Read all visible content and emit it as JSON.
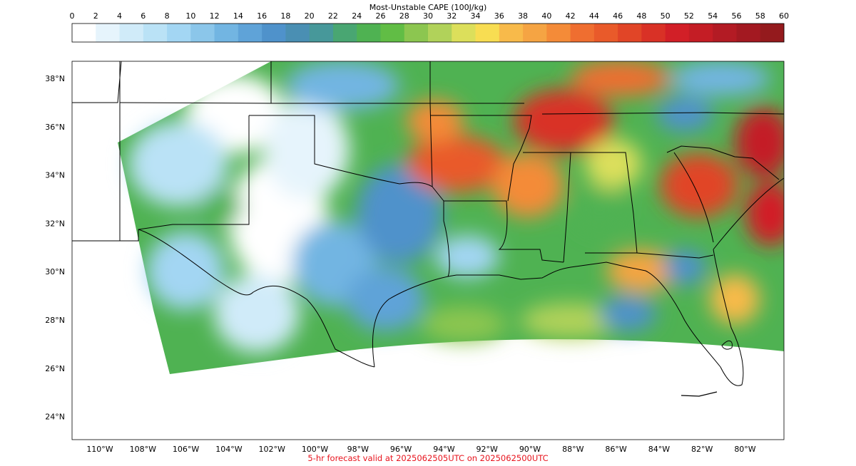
{
  "colorbar": {
    "title": "Most-Unstable CAPE (100J/kg)",
    "ticks": [
      "0",
      "2",
      "4",
      "6",
      "8",
      "10",
      "12",
      "14",
      "16",
      "18",
      "20",
      "22",
      "24",
      "26",
      "28",
      "30",
      "32",
      "34",
      "36",
      "38",
      "40",
      "42",
      "44",
      "46",
      "48",
      "50",
      "52",
      "54",
      "56",
      "58",
      "60"
    ],
    "colors": [
      "#ffffff",
      "#e6f4fc",
      "#d0ebf9",
      "#bae2f6",
      "#a3d6f3",
      "#8bc6ea",
      "#72b5e2",
      "#5fa3d8",
      "#4f92cb",
      "#4a8fb3",
      "#47989a",
      "#49a672",
      "#4fb252",
      "#61bd45",
      "#8cc650",
      "#b1d25a",
      "#dcdf5b",
      "#f8dd52",
      "#f8ba4a",
      "#f5a443",
      "#f48b38",
      "#ef6e30",
      "#e95a2a",
      "#e14527",
      "#d93126",
      "#d21f27",
      "#c41d25",
      "#b31b24",
      "#a31921",
      "#941a1d"
    ]
  },
  "map": {
    "lat_labels": [
      "38°N",
      "36°N",
      "34°N",
      "32°N",
      "30°N",
      "28°N",
      "26°N",
      "24°N"
    ],
    "lon_labels": [
      "110°W",
      "108°W",
      "106°W",
      "104°W",
      "102°W",
      "100°W",
      "98°W",
      "96°W",
      "94°W",
      "92°W",
      "90°W",
      "88°W",
      "86°W",
      "84°W",
      "82°W",
      "80°W"
    ]
  },
  "footer": "5-hr forecast valid at 2025062505UTC on 2025062500UTC"
}
